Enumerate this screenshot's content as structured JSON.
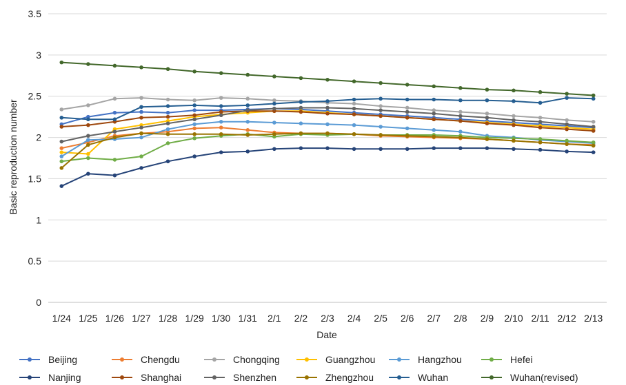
{
  "chart_data": {
    "type": "line",
    "xlabel": "Date",
    "ylabel": "Basic reproduction number",
    "ylim": [
      0,
      3.5
    ],
    "yticks": [
      "0",
      "0.5",
      "1",
      "1.5",
      "2",
      "2.5",
      "3",
      "3.5"
    ],
    "grid": "horizontal",
    "legend_position": "bottom",
    "categories": [
      "1/24",
      "1/25",
      "1/26",
      "1/27",
      "1/28",
      "1/29",
      "1/30",
      "1/31",
      "2/1",
      "2/2",
      "2/3",
      "2/4",
      "2/5",
      "2/6",
      "2/7",
      "2/8",
      "2/9",
      "2/10",
      "2/11",
      "2/12",
      "2/13"
    ],
    "series": [
      {
        "name": "Beijing",
        "color": "#4472C4",
        "values": [
          2.16,
          2.25,
          2.3,
          2.31,
          2.3,
          2.33,
          2.33,
          2.34,
          2.35,
          2.34,
          2.32,
          2.3,
          2.28,
          2.26,
          2.24,
          2.22,
          2.2,
          2.18,
          2.16,
          2.14,
          2.12
        ]
      },
      {
        "name": "Chengdu",
        "color": "#ED7D31",
        "values": [
          1.87,
          1.94,
          2.02,
          2.05,
          2.07,
          2.11,
          2.12,
          2.09,
          2.06,
          2.05,
          2.05,
          2.04,
          2.02,
          2.01,
          2.0,
          1.99,
          1.98,
          1.96,
          1.94,
          1.92,
          1.91
        ]
      },
      {
        "name": "Chongqing",
        "color": "#A5A5A5",
        "values": [
          2.34,
          2.39,
          2.47,
          2.48,
          2.46,
          2.45,
          2.48,
          2.47,
          2.45,
          2.44,
          2.42,
          2.41,
          2.38,
          2.36,
          2.33,
          2.31,
          2.29,
          2.26,
          2.24,
          2.21,
          2.19
        ]
      },
      {
        "name": "Guangzhou",
        "color": "#FFC000",
        "values": [
          1.82,
          1.8,
          2.1,
          2.15,
          2.2,
          2.25,
          2.28,
          2.3,
          2.32,
          2.32,
          2.3,
          2.28,
          2.26,
          2.24,
          2.22,
          2.2,
          2.18,
          2.16,
          2.14,
          2.12,
          2.1
        ]
      },
      {
        "name": "Hangzhou",
        "color": "#5B9BD5",
        "values": [
          1.77,
          1.97,
          1.98,
          2.0,
          2.1,
          2.16,
          2.19,
          2.19,
          2.18,
          2.17,
          2.16,
          2.15,
          2.13,
          2.11,
          2.09,
          2.07,
          2.02,
          2.0,
          1.97,
          1.95,
          1.93
        ]
      },
      {
        "name": "Hefei",
        "color": "#70AD47",
        "values": [
          1.71,
          1.75,
          1.73,
          1.77,
          1.93,
          1.99,
          2.02,
          2.04,
          2.01,
          2.04,
          2.03,
          2.04,
          2.03,
          2.03,
          2.03,
          2.02,
          2.0,
          1.99,
          1.98,
          1.96,
          1.94
        ]
      },
      {
        "name": "Nanjing",
        "color": "#264478",
        "values": [
          1.41,
          1.56,
          1.54,
          1.63,
          1.71,
          1.77,
          1.82,
          1.83,
          1.86,
          1.87,
          1.87,
          1.86,
          1.86,
          1.86,
          1.87,
          1.87,
          1.87,
          1.86,
          1.85,
          1.83,
          1.82
        ]
      },
      {
        "name": "Shanghai",
        "color": "#9E480E",
        "values": [
          2.13,
          2.15,
          2.19,
          2.24,
          2.25,
          2.27,
          2.31,
          2.32,
          2.32,
          2.31,
          2.29,
          2.28,
          2.26,
          2.24,
          2.22,
          2.2,
          2.17,
          2.15,
          2.12,
          2.1,
          2.08
        ]
      },
      {
        "name": "Shenzhen",
        "color": "#636363",
        "values": [
          1.95,
          2.02,
          2.07,
          2.12,
          2.17,
          2.22,
          2.27,
          2.33,
          2.35,
          2.36,
          2.36,
          2.35,
          2.33,
          2.31,
          2.29,
          2.26,
          2.24,
          2.21,
          2.19,
          2.16,
          2.13
        ]
      },
      {
        "name": "Zhengzhou",
        "color": "#997300",
        "values": [
          1.63,
          1.91,
          2.0,
          2.05,
          2.04,
          2.04,
          2.04,
          2.03,
          2.04,
          2.05,
          2.05,
          2.04,
          2.03,
          2.02,
          2.01,
          2.0,
          1.98,
          1.96,
          1.94,
          1.92,
          1.9
        ]
      },
      {
        "name": "Wuhan",
        "color": "#255E91",
        "values": [
          2.24,
          2.22,
          2.22,
          2.37,
          2.38,
          2.39,
          2.38,
          2.39,
          2.41,
          2.43,
          2.44,
          2.46,
          2.47,
          2.46,
          2.46,
          2.45,
          2.45,
          2.44,
          2.42,
          2.48,
          2.47
        ]
      },
      {
        "name": "Wuhan(revised)",
        "color": "#43682B",
        "values": [
          2.91,
          2.89,
          2.87,
          2.85,
          2.83,
          2.8,
          2.78,
          2.76,
          2.74,
          2.72,
          2.7,
          2.68,
          2.66,
          2.64,
          2.62,
          2.6,
          2.58,
          2.57,
          2.55,
          2.53,
          2.51
        ]
      }
    ]
  }
}
